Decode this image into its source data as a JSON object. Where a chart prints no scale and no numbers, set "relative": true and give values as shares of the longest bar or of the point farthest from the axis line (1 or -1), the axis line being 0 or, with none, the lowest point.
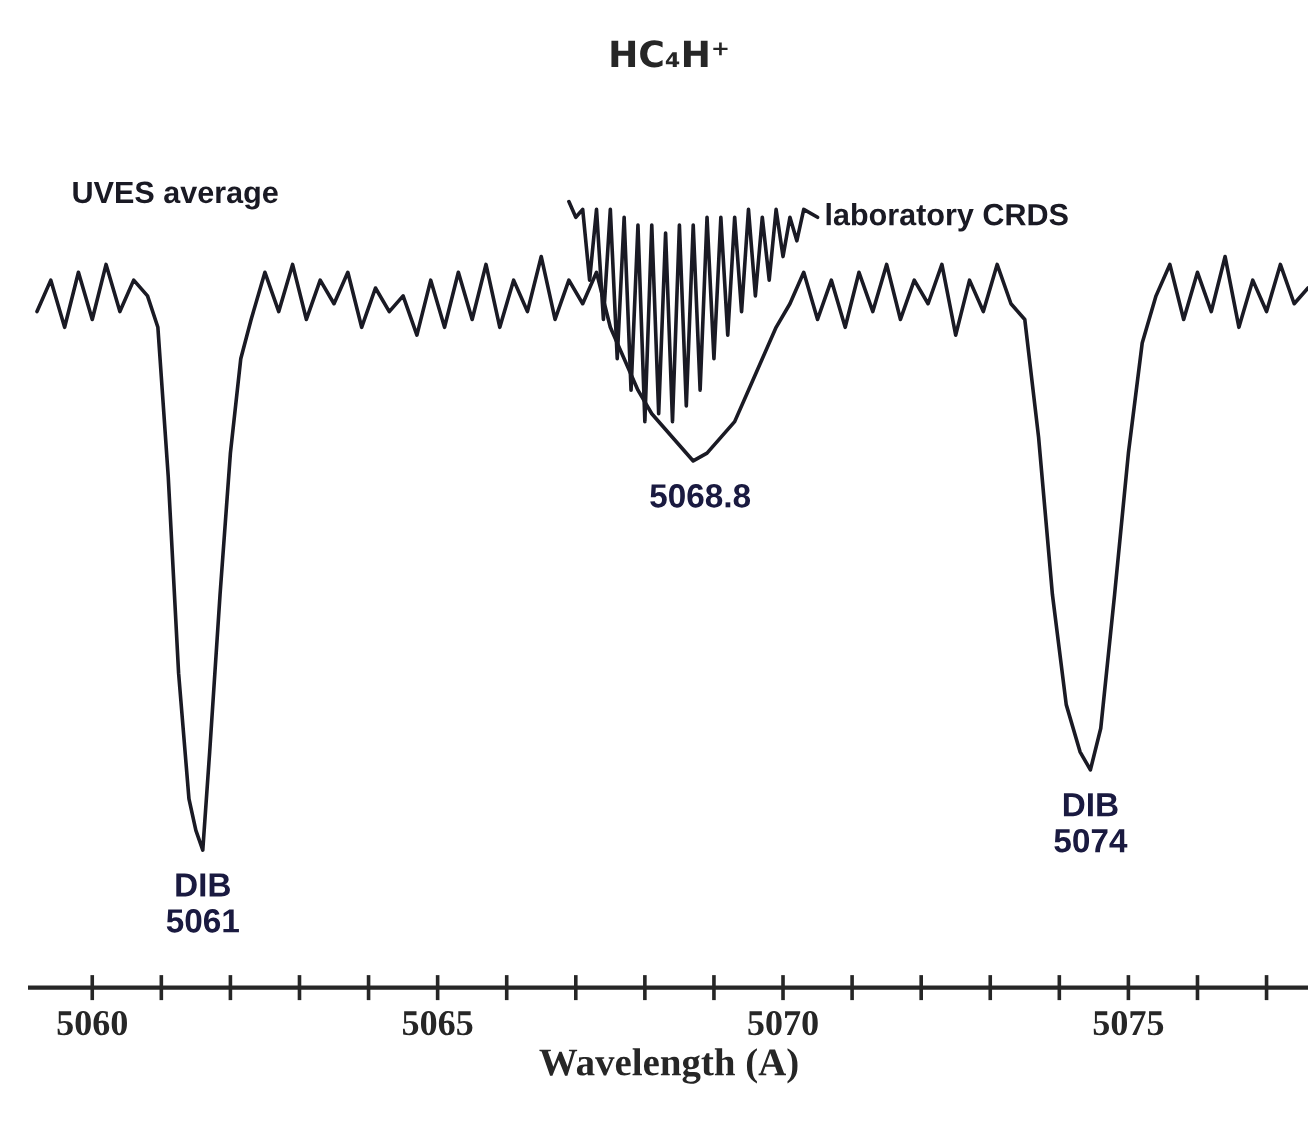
{
  "chart_data": {
    "type": "line",
    "title": "HC₄H⁺",
    "xlabel": "Wavelength (A)",
    "relative": true,
    "xlim": [
      5059.1,
      5077.6
    ],
    "xticks": [
      5060,
      {
        "value": 5061,
        "label": null
      },
      {
        "value": 5062,
        "label": null
      },
      {
        "value": 5063,
        "label": null
      },
      {
        "value": 5064,
        "label": null
      },
      5065,
      {
        "value": 5066,
        "label": null
      },
      {
        "value": 5067,
        "label": null
      },
      {
        "value": 5068,
        "label": null
      },
      {
        "value": 5069,
        "label": null
      },
      5070,
      {
        "value": 5071,
        "label": null
      },
      {
        "value": 5072,
        "label": null
      },
      {
        "value": 5073,
        "label": null
      },
      {
        "value": 5074,
        "label": null
      },
      5075,
      {
        "value": 5076,
        "label": null
      },
      {
        "value": 5077,
        "label": null
      }
    ],
    "grid": false,
    "legend": false,
    "annotations": [
      {
        "text": "5068.8",
        "x": 5068.8,
        "y": 0.67
      },
      {
        "text": "DIB\n5061",
        "x": 5061.6,
        "y": 0.175
      },
      {
        "text": "DIB\n5074",
        "x": 5074.45,
        "y": 0.277
      }
    ],
    "series": [
      {
        "name": "UVES average",
        "color": "#1a1a24",
        "x": [
          5059.2,
          5059.4,
          5059.6,
          5059.8,
          5060.0,
          5060.2,
          5060.4,
          5060.6,
          5060.8,
          5060.95,
          5061.1,
          5061.25,
          5061.4,
          5061.5,
          5061.6,
          5061.7,
          5061.85,
          5062.0,
          5062.15,
          5062.3,
          5062.5,
          5062.7,
          5062.9,
          5063.1,
          5063.3,
          5063.5,
          5063.7,
          5063.9,
          5064.1,
          5064.3,
          5064.5,
          5064.7,
          5064.9,
          5065.1,
          5065.3,
          5065.5,
          5065.7,
          5065.9,
          5066.1,
          5066.3,
          5066.5,
          5066.7,
          5066.9,
          5067.1,
          5067.3,
          5067.5,
          5067.7,
          5067.9,
          5068.1,
          5068.3,
          5068.5,
          5068.7,
          5068.9,
          5069.1,
          5069.3,
          5069.5,
          5069.7,
          5069.9,
          5070.1,
          5070.3,
          5070.5,
          5070.7,
          5070.9,
          5071.1,
          5071.3,
          5071.5,
          5071.7,
          5071.9,
          5072.1,
          5072.3,
          5072.5,
          5072.7,
          5072.9,
          5073.1,
          5073.3,
          5073.5,
          5073.7,
          5073.9,
          5074.1,
          5074.3,
          5074.45,
          5074.6,
          5074.8,
          5075.0,
          5075.2,
          5075.4,
          5075.6,
          5075.8,
          5076.0,
          5076.2,
          5076.4,
          5076.6,
          5076.8,
          5077.0,
          5077.2,
          5077.4,
          5077.6
        ],
        "values": [
          0.86,
          0.9,
          0.84,
          0.91,
          0.85,
          0.92,
          0.86,
          0.9,
          0.88,
          0.84,
          0.65,
          0.4,
          0.24,
          0.2,
          0.175,
          0.3,
          0.5,
          0.68,
          0.8,
          0.85,
          0.91,
          0.86,
          0.92,
          0.85,
          0.9,
          0.87,
          0.91,
          0.84,
          0.89,
          0.86,
          0.88,
          0.83,
          0.9,
          0.84,
          0.91,
          0.85,
          0.92,
          0.84,
          0.9,
          0.86,
          0.93,
          0.85,
          0.9,
          0.87,
          0.91,
          0.84,
          0.8,
          0.76,
          0.73,
          0.71,
          0.69,
          0.67,
          0.68,
          0.7,
          0.72,
          0.76,
          0.8,
          0.84,
          0.87,
          0.91,
          0.85,
          0.9,
          0.84,
          0.91,
          0.86,
          0.92,
          0.85,
          0.9,
          0.87,
          0.92,
          0.83,
          0.9,
          0.86,
          0.92,
          0.87,
          0.85,
          0.7,
          0.5,
          0.36,
          0.3,
          0.277,
          0.33,
          0.5,
          0.68,
          0.82,
          0.88,
          0.92,
          0.85,
          0.91,
          0.86,
          0.93,
          0.84,
          0.9,
          0.86,
          0.92,
          0.87,
          0.89
        ]
      },
      {
        "name": "laboratory CRDS",
        "color": "#1a1a24",
        "x": [
          5066.9,
          5067.0,
          5067.1,
          5067.2,
          5067.3,
          5067.4,
          5067.5,
          5067.6,
          5067.7,
          5067.8,
          5067.9,
          5068.0,
          5068.1,
          5068.2,
          5068.3,
          5068.4,
          5068.5,
          5068.6,
          5068.7,
          5068.8,
          5068.9,
          5069.0,
          5069.1,
          5069.2,
          5069.3,
          5069.4,
          5069.5,
          5069.6,
          5069.7,
          5069.8,
          5069.9,
          5070.0,
          5070.1,
          5070.2,
          5070.3,
          5070.5
        ],
        "values": [
          1.0,
          0.98,
          0.99,
          0.9,
          0.99,
          0.85,
          0.99,
          0.8,
          0.98,
          0.76,
          0.97,
          0.72,
          0.97,
          0.73,
          0.96,
          0.72,
          0.97,
          0.74,
          0.97,
          0.76,
          0.98,
          0.8,
          0.98,
          0.83,
          0.98,
          0.86,
          0.99,
          0.88,
          0.98,
          0.9,
          0.99,
          0.93,
          0.98,
          0.95,
          0.99,
          0.98
        ]
      }
    ]
  }
}
